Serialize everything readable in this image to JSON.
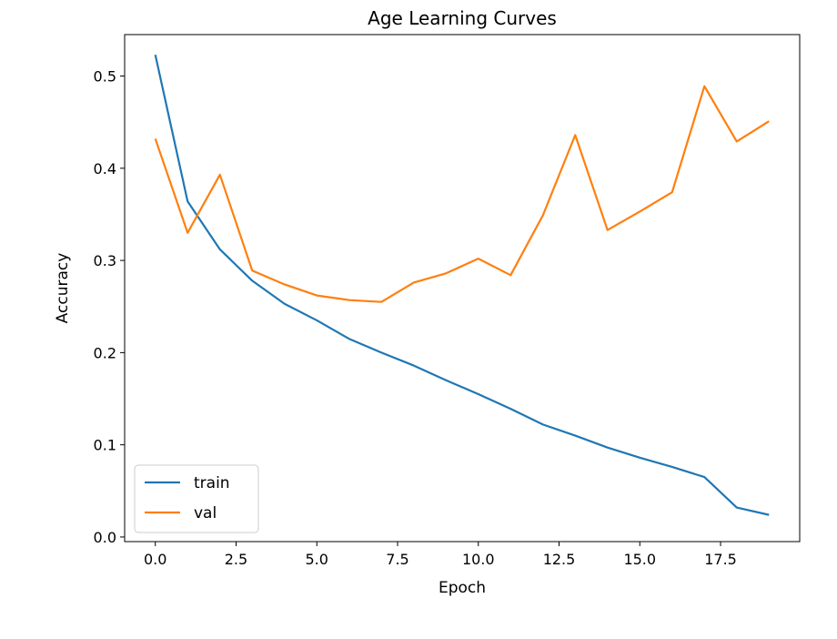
{
  "chart_data": {
    "type": "line",
    "title": "Age Learning Curves",
    "xlabel": "Epoch",
    "ylabel": "Accuracy",
    "x": [
      0,
      1,
      2,
      3,
      4,
      5,
      6,
      7,
      8,
      9,
      10,
      11,
      12,
      13,
      14,
      15,
      16,
      17,
      18,
      19
    ],
    "xlim": [
      -0.95,
      19.95
    ],
    "ylim": [
      -0.005,
      0.545
    ],
    "xticks": [
      0.0,
      2.5,
      5.0,
      7.5,
      10.0,
      12.5,
      15.0,
      17.5
    ],
    "xtick_labels": [
      "0.0",
      "2.5",
      "5.0",
      "7.5",
      "10.0",
      "12.5",
      "15.0",
      "17.5"
    ],
    "yticks": [
      0.0,
      0.1,
      0.2,
      0.3,
      0.4,
      0.5
    ],
    "ytick_labels": [
      "0.0",
      "0.1",
      "0.2",
      "0.3",
      "0.4",
      "0.5"
    ],
    "grid": false,
    "legend_position": "lower-left",
    "series": [
      {
        "name": "train",
        "color": "#1f77b4",
        "values": [
          0.523,
          0.364,
          0.312,
          0.278,
          0.253,
          0.235,
          0.215,
          0.2,
          0.186,
          0.17,
          0.155,
          0.139,
          0.122,
          0.11,
          0.097,
          0.086,
          0.076,
          0.065,
          0.032,
          0.024
        ]
      },
      {
        "name": "val",
        "color": "#ff7f0e",
        "values": [
          0.432,
          0.33,
          0.393,
          0.289,
          0.274,
          0.262,
          0.257,
          0.255,
          0.276,
          0.286,
          0.302,
          0.284,
          0.349,
          0.436,
          0.333,
          0.353,
          0.374,
          0.489,
          0.429,
          0.451
        ]
      }
    ]
  }
}
